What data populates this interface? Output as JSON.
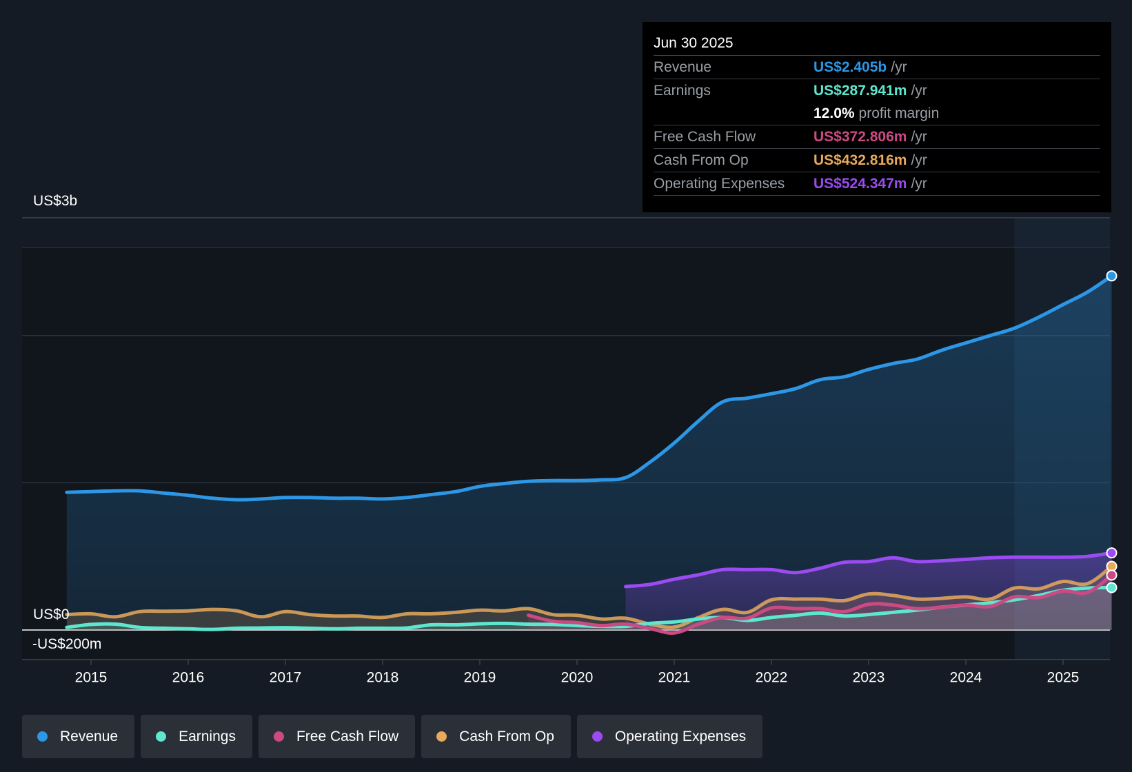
{
  "tooltip": {
    "date": "Jun 30 2025",
    "rows": [
      {
        "label": "Revenue",
        "value": "US$2.405b",
        "unit": "/yr",
        "color": "#2d97e6"
      },
      {
        "label": "Earnings",
        "value": "US$287.941m",
        "unit": "/yr",
        "color": "#5ee6cf"
      },
      {
        "label": "",
        "value": "12.0%",
        "unit": "profit margin",
        "color": "#ffffff"
      },
      {
        "label": "Free Cash Flow",
        "value": "US$372.806m",
        "unit": "/yr",
        "color": "#cc4a84"
      },
      {
        "label": "Cash From Op",
        "value": "US$432.816m",
        "unit": "/yr",
        "color": "#e8a95c"
      },
      {
        "label": "Operating Expenses",
        "value": "US$524.347m",
        "unit": "/yr",
        "color": "#9b4bf2"
      }
    ]
  },
  "legend": [
    {
      "label": "Revenue",
      "color": "#2d97e6"
    },
    {
      "label": "Earnings",
      "color": "#5ee6cf"
    },
    {
      "label": "Free Cash Flow",
      "color": "#cc4a84"
    },
    {
      "label": "Cash From Op",
      "color": "#e8a95c"
    },
    {
      "label": "Operating Expenses",
      "color": "#9b4bf2"
    }
  ],
  "chart_data": {
    "type": "area",
    "title": "",
    "xlabel": "",
    "ylabel": "",
    "y_axis_labels": {
      "top": "US$3b",
      "zero": "US$0",
      "bottom": "-US$200m"
    },
    "ylim": [
      -200,
      2800
    ],
    "xlim": [
      2014.5,
      2025.5
    ],
    "x_ticks": [
      2015,
      2016,
      2017,
      2018,
      2019,
      2020,
      2021,
      2022,
      2023,
      2024,
      2025
    ],
    "gridlines_y": [
      1000,
      2000,
      2600
    ],
    "forecast_shade_from": 2024.5,
    "series": [
      {
        "name": "Revenue",
        "color": "#2d97e6",
        "filled": true,
        "x": [
          2014.75,
          2015.0,
          2015.25,
          2015.5,
          2015.75,
          2016.0,
          2016.25,
          2016.5,
          2016.75,
          2017.0,
          2017.25,
          2017.5,
          2017.75,
          2018.0,
          2018.25,
          2018.5,
          2018.75,
          2019.0,
          2019.25,
          2019.5,
          2019.75,
          2020.0,
          2020.25,
          2020.5,
          2020.75,
          2021.0,
          2021.25,
          2021.5,
          2021.75,
          2022.0,
          2022.25,
          2022.5,
          2022.75,
          2023.0,
          2023.25,
          2023.5,
          2023.75,
          2024.0,
          2024.25,
          2024.5,
          2024.75,
          2025.0,
          2025.25,
          2025.5
        ],
        "values": [
          935,
          940,
          945,
          945,
          930,
          915,
          895,
          885,
          890,
          900,
          900,
          895,
          895,
          890,
          900,
          920,
          940,
          975,
          995,
          1010,
          1015,
          1015,
          1020,
          1035,
          1140,
          1270,
          1420,
          1550,
          1575,
          1605,
          1640,
          1700,
          1720,
          1770,
          1810,
          1840,
          1900,
          1950,
          2000,
          2050,
          2125,
          2210,
          2295,
          2405
        ]
      },
      {
        "name": "Earnings",
        "color": "#5ee6cf",
        "filled": true,
        "x": [
          2014.75,
          2015.0,
          2015.25,
          2015.5,
          2015.75,
          2016.0,
          2016.25,
          2016.5,
          2016.75,
          2017.0,
          2017.25,
          2017.5,
          2017.75,
          2018.0,
          2018.25,
          2018.5,
          2018.75,
          2019.0,
          2019.25,
          2019.5,
          2019.75,
          2020.0,
          2020.25,
          2020.5,
          2020.75,
          2021.0,
          2021.25,
          2021.5,
          2021.75,
          2022.0,
          2022.25,
          2022.5,
          2022.75,
          2023.0,
          2023.25,
          2023.5,
          2023.75,
          2024.0,
          2024.25,
          2024.5,
          2024.75,
          2025.0,
          2025.25,
          2025.5
        ],
        "values": [
          18,
          38,
          40,
          18,
          12,
          8,
          4,
          12,
          14,
          16,
          12,
          8,
          12,
          12,
          14,
          35,
          35,
          42,
          45,
          40,
          38,
          30,
          25,
          25,
          45,
          55,
          75,
          85,
          65,
          85,
          100,
          115,
          95,
          105,
          120,
          135,
          155,
          170,
          185,
          205,
          235,
          270,
          285,
          288
        ]
      },
      {
        "name": "Free Cash Flow",
        "color": "#cc4a84",
        "filled": true,
        "x": [
          2019.5,
          2019.75,
          2020.0,
          2020.25,
          2020.5,
          2020.75,
          2021.0,
          2021.25,
          2021.5,
          2021.75,
          2022.0,
          2022.25,
          2022.5,
          2022.75,
          2023.0,
          2023.25,
          2023.5,
          2023.75,
          2024.0,
          2024.25,
          2024.5,
          2024.75,
          2025.0,
          2025.25,
          2025.5
        ],
        "values": [
          100,
          60,
          50,
          30,
          40,
          10,
          -20,
          40,
          85,
          80,
          150,
          145,
          145,
          125,
          175,
          170,
          145,
          155,
          170,
          160,
          225,
          220,
          265,
          255,
          373
        ]
      },
      {
        "name": "Cash From Op",
        "color": "#e8a95c",
        "filled": true,
        "x": [
          2014.75,
          2015.0,
          2015.25,
          2015.5,
          2015.75,
          2016.0,
          2016.25,
          2016.5,
          2016.75,
          2017.0,
          2017.25,
          2017.5,
          2017.75,
          2018.0,
          2018.25,
          2018.5,
          2018.75,
          2019.0,
          2019.25,
          2019.5,
          2019.75,
          2020.0,
          2020.25,
          2020.5,
          2020.75,
          2021.0,
          2021.25,
          2021.5,
          2021.75,
          2022.0,
          2022.25,
          2022.5,
          2022.75,
          2023.0,
          2023.25,
          2023.5,
          2023.75,
          2024.0,
          2024.25,
          2024.5,
          2024.75,
          2025.0,
          2025.25,
          2025.5
        ],
        "values": [
          105,
          110,
          90,
          125,
          128,
          130,
          140,
          130,
          90,
          125,
          105,
          95,
          95,
          85,
          110,
          110,
          120,
          135,
          130,
          145,
          105,
          100,
          75,
          80,
          40,
          20,
          85,
          140,
          120,
          205,
          210,
          210,
          200,
          245,
          235,
          210,
          215,
          225,
          210,
          285,
          280,
          330,
          315,
          433
        ]
      },
      {
        "name": "Operating Expenses",
        "color": "#9b4bf2",
        "filled": true,
        "x": [
          2020.5,
          2020.75,
          2021.0,
          2021.25,
          2021.5,
          2021.75,
          2022.0,
          2022.25,
          2022.5,
          2022.75,
          2023.0,
          2023.25,
          2023.5,
          2023.75,
          2024.0,
          2024.25,
          2024.5,
          2024.75,
          2025.0,
          2025.25,
          2025.5
        ],
        "values": [
          295,
          310,
          345,
          375,
          410,
          410,
          410,
          390,
          420,
          460,
          465,
          490,
          465,
          470,
          480,
          490,
          495,
          495,
          495,
          500,
          524
        ]
      }
    ]
  }
}
